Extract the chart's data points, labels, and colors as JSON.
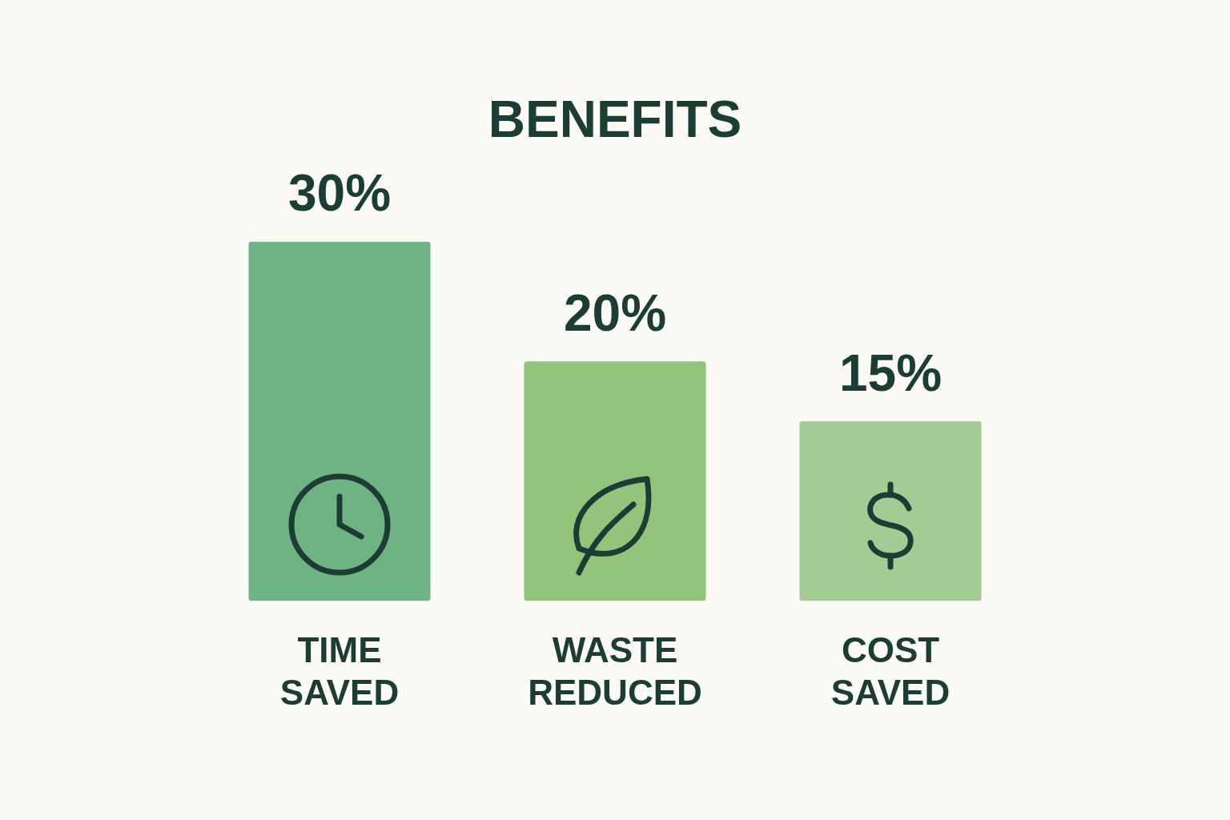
{
  "chart_data": {
    "type": "bar",
    "title": "BENEFITS",
    "categories": [
      "TIME SAVED",
      "WASTE REDUCED",
      "COST SAVED"
    ],
    "values": [
      30,
      20,
      15
    ],
    "colors": [
      "#6fb283",
      "#92c47c",
      "#a3cb94"
    ],
    "value_labels": [
      "30%",
      "20%",
      "15%"
    ]
  }
}
